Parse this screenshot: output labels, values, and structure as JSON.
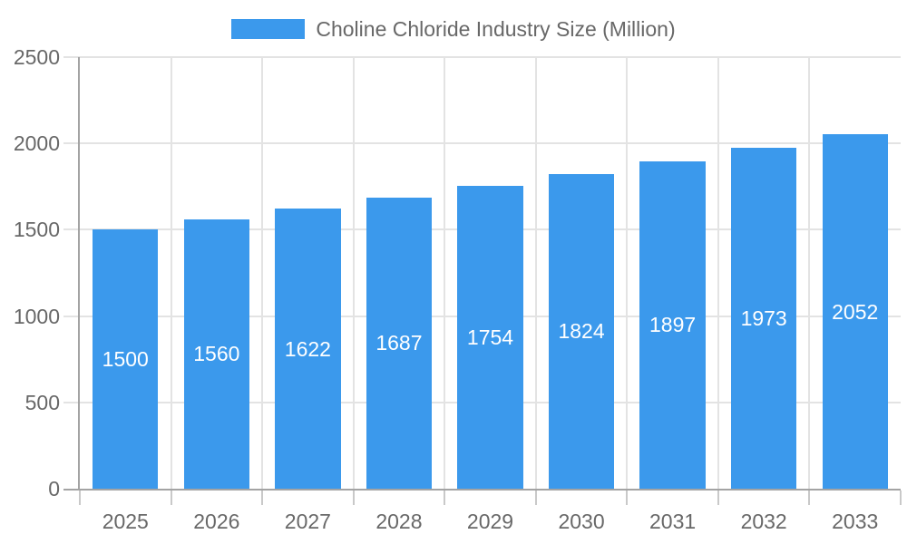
{
  "legend": {
    "label": "Choline Chloride Industry Size (Million)"
  },
  "chart_data": {
    "type": "bar",
    "title": "Choline Chloride Industry Size (Million)",
    "series_name": "Choline Chloride Industry Size (Million)",
    "categories": [
      "2025",
      "2026",
      "2027",
      "2028",
      "2029",
      "2030",
      "2031",
      "2032",
      "2033"
    ],
    "values": [
      1500,
      1560,
      1622,
      1687,
      1754,
      1824,
      1897,
      1973,
      2052
    ],
    "xlabel": "",
    "ylabel": "",
    "ylim": [
      0,
      2500
    ],
    "yticks": [
      0,
      500,
      1000,
      1500,
      2000,
      2500
    ],
    "grid": true,
    "legend_position": "top",
    "bar_color": "#3b99ec",
    "bar_label_color": "#ffffff",
    "axis_label_color": "#686868",
    "gridline_color": "#e3e3e3",
    "axis_line_color": "#a3a3a3"
  }
}
